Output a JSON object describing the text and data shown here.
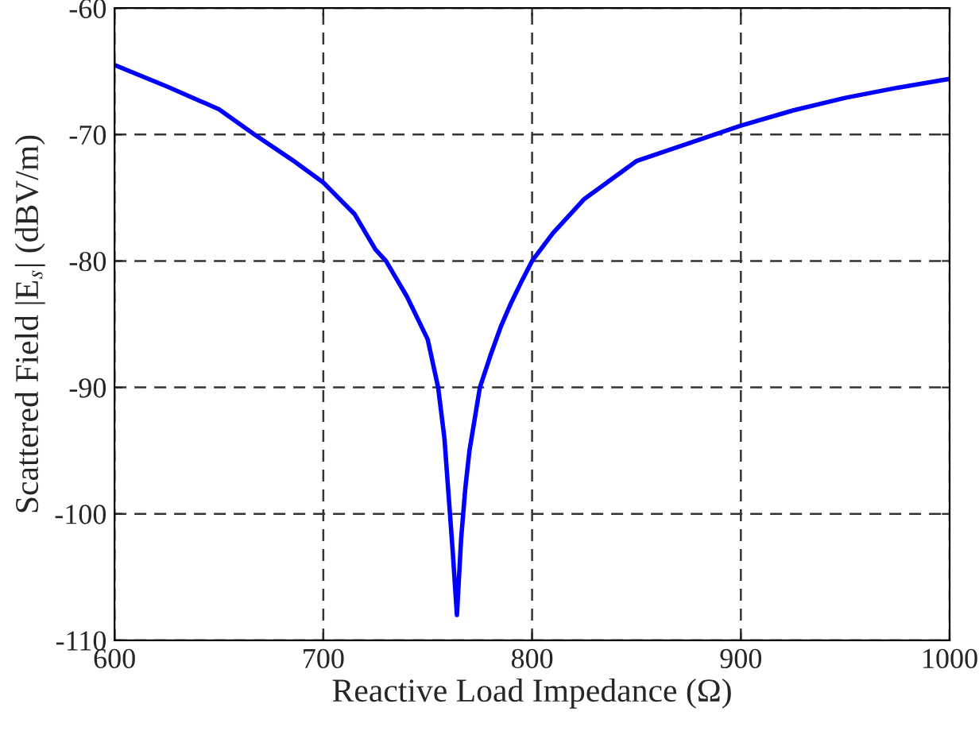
{
  "chart_data": {
    "type": "line",
    "xlabel": "Reactive Load Impedance (Ω)",
    "ylabel": "Scattered Field |E$_{s}$| (dBV/m)",
    "series": [
      {
        "color": "#0000ff",
        "x": [
          600,
          625,
          650,
          667,
          685,
          700,
          715,
          725,
          730,
          740,
          750,
          755,
          758,
          760,
          762,
          764,
          766,
          768,
          770,
          773,
          775,
          780,
          785,
          790,
          795,
          800,
          810,
          825,
          850,
          875,
          900,
          925,
          950,
          975,
          1000
        ],
        "values": [
          -64.5,
          -66.2,
          -68.0,
          -70.0,
          -72.0,
          -73.8,
          -76.3,
          -79.1,
          -80.0,
          -82.8,
          -86.2,
          -90.0,
          -94.0,
          -98.5,
          -103.0,
          -108.0,
          -102.0,
          -98.0,
          -95.0,
          -92.0,
          -90.0,
          -87.5,
          -85.2,
          -83.3,
          -81.6,
          -80.0,
          -77.8,
          -75.1,
          -72.1,
          -70.7,
          -69.3,
          -68.1,
          -67.1,
          -66.3,
          -65.6
        ]
      }
    ],
    "xlim": [
      600,
      1000
    ],
    "ylim": [
      -110,
      -60
    ],
    "xticks": [
      600,
      700,
      800,
      900,
      1000
    ],
    "yticks": [
      -110,
      -100,
      -90,
      -80,
      -70,
      -60
    ],
    "grid": true,
    "line_style": "solid",
    "marker": "none",
    "legend": false
  }
}
